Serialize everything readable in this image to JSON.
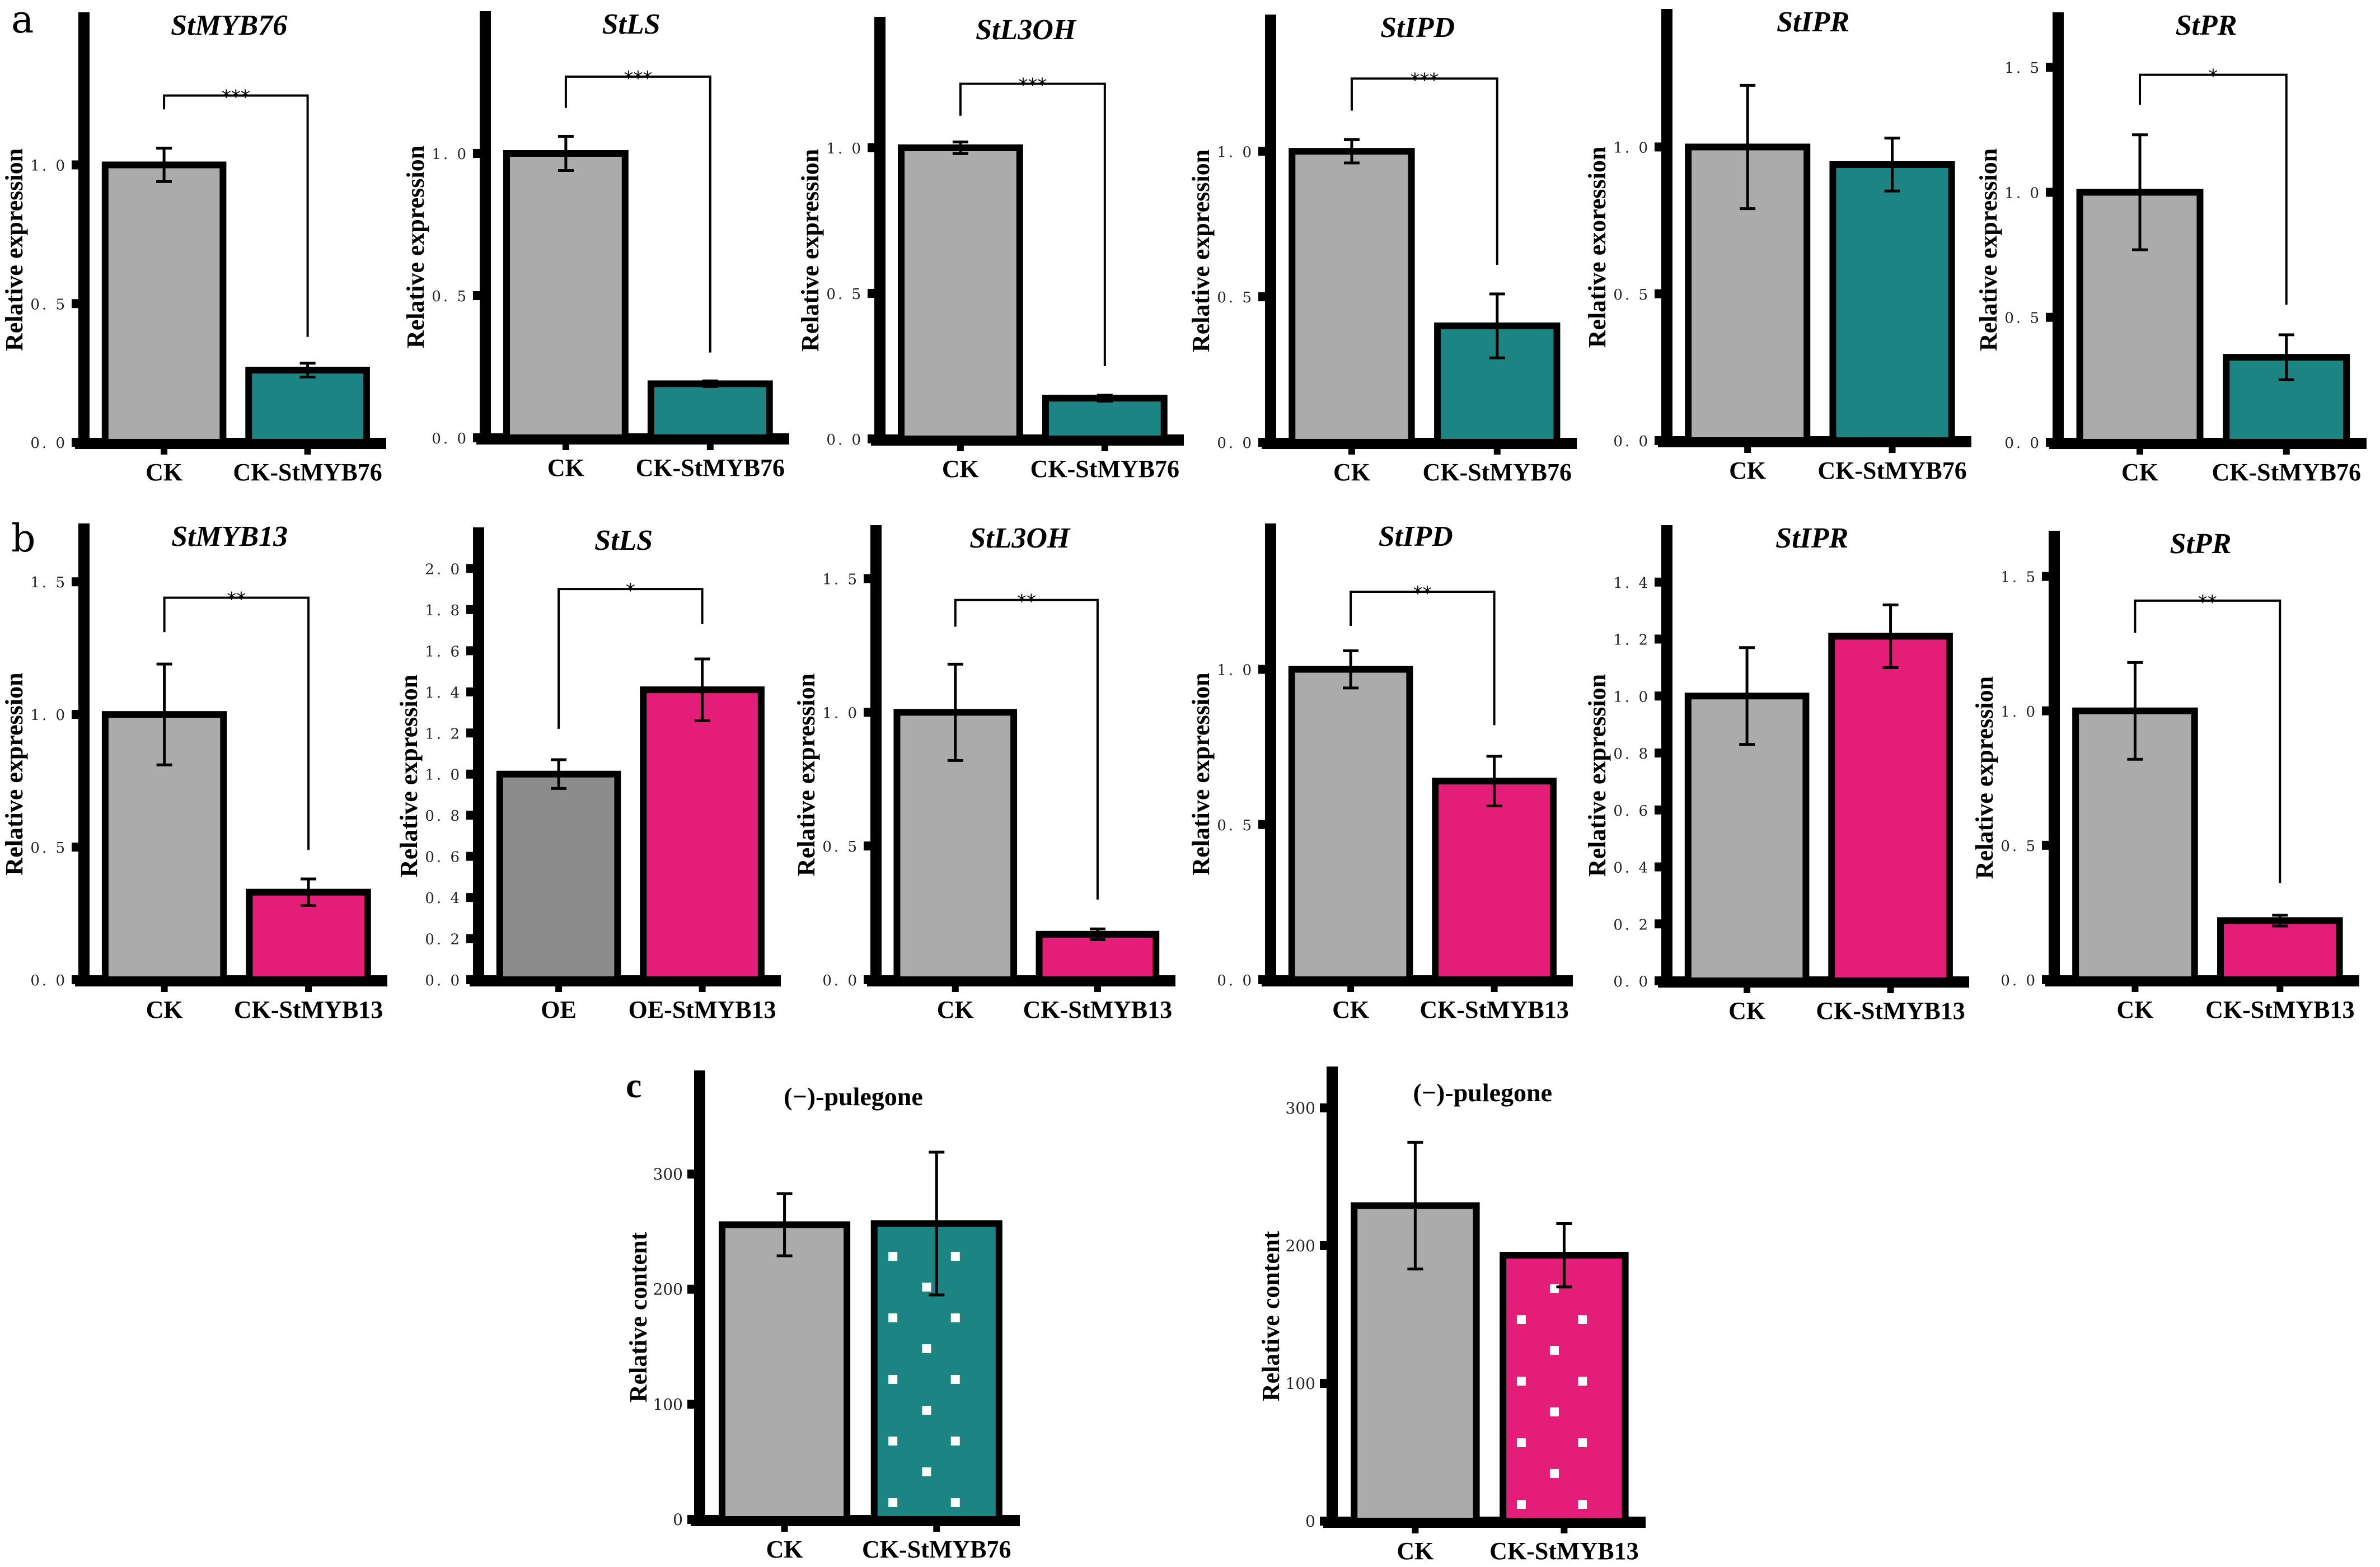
{
  "figure": {
    "panel_labels": [
      "a",
      "b",
      "c"
    ]
  },
  "colors": {
    "control_gray": "#ababab",
    "oe_gray": "#8c8c8c",
    "teal": "#1c8482",
    "magenta": "#e41e78",
    "axis": "#000000",
    "dot": "#ffffff"
  },
  "chart_data": [
    {
      "id": "a1",
      "row": "a",
      "type": "bar",
      "title": "StMYB76",
      "title_style": "italic",
      "xlabel": "",
      "ylabel": "Relative expression",
      "categories": [
        "CK",
        "CK-StMYB76"
      ],
      "values": [
        1.0,
        0.26
      ],
      "errors": [
        0.06,
        0.025
      ],
      "bar_colors": [
        "control_gray",
        "teal"
      ],
      "yticks": [
        0.0,
        0.5,
        1.0
      ],
      "ytick_labels": [
        "0. 0",
        "0. 5",
        "1. 0"
      ],
      "ylim": [
        0,
        1.55
      ],
      "significance": "***",
      "bracket_top": 1.25,
      "bracket_left_end": 1.2,
      "bracket_right_end": 0.38
    },
    {
      "id": "a2",
      "row": "a",
      "type": "bar",
      "title": "StLS",
      "title_style": "italic",
      "xlabel": "",
      "ylabel": "Relative expression",
      "categories": [
        "CK",
        "CK-StMYB76"
      ],
      "values": [
        1.0,
        0.19
      ],
      "errors": [
        0.06,
        0.01
      ],
      "bar_colors": [
        "control_gray",
        "teal"
      ],
      "yticks": [
        0.0,
        0.5,
        1.0
      ],
      "ytick_labels": [
        "0. 0",
        "0. 5",
        "1. 0"
      ],
      "ylim": [
        0,
        1.5
      ],
      "significance": "***",
      "bracket_top": 1.27,
      "bracket_left_end": 1.16,
      "bracket_right_end": 0.3
    },
    {
      "id": "a3",
      "row": "a",
      "type": "bar",
      "title": "StL3OH",
      "title_style": "italic",
      "xlabel": "",
      "ylabel": "Relative expression",
      "categories": [
        "CK",
        "CK-StMYB76"
      ],
      "values": [
        1.0,
        0.14
      ],
      "errors": [
        0.02,
        0.01
      ],
      "bar_colors": [
        "control_gray",
        "teal"
      ],
      "yticks": [
        0.0,
        0.5,
        1.0
      ],
      "ytick_labels": [
        "0. 0",
        "0. 5",
        "1. 0"
      ],
      "ylim": [
        0,
        1.45
      ],
      "significance": "***",
      "bracket_top": 1.22,
      "bracket_left_end": 1.11,
      "bracket_right_end": 0.25
    },
    {
      "id": "a4",
      "row": "a",
      "type": "bar",
      "title": "StIPD",
      "title_style": "italic",
      "xlabel": "",
      "ylabel": "Relative expression",
      "categories": [
        "CK",
        "CK-StMYB76"
      ],
      "values": [
        1.0,
        0.4
      ],
      "errors": [
        0.04,
        0.11
      ],
      "bar_colors": [
        "control_gray",
        "teal"
      ],
      "yticks": [
        0.0,
        0.5,
        1.0
      ],
      "ytick_labels": [
        "0. 0",
        "0. 5",
        "1. 0"
      ],
      "ylim": [
        0,
        1.47
      ],
      "significance": "***",
      "bracket_top": 1.25,
      "bracket_left_end": 1.14,
      "bracket_right_end": 0.61
    },
    {
      "id": "a5",
      "row": "a",
      "type": "bar",
      "title": "StIPR",
      "title_style": "italic",
      "xlabel": "",
      "ylabel": "Relative exoression",
      "categories": [
        "CK",
        "CK-StMYB76"
      ],
      "values": [
        1.0,
        0.94
      ],
      "errors": [
        0.21,
        0.09
      ],
      "bar_colors": [
        "control_gray",
        "teal"
      ],
      "yticks": [
        0.0,
        0.5,
        1.0
      ],
      "ytick_labels": [
        "0. 0",
        "0. 5",
        "1. 0"
      ],
      "ylim": [
        0,
        1.47
      ],
      "significance": null
    },
    {
      "id": "a6",
      "row": "a",
      "type": "bar",
      "title": "StPR",
      "title_style": "italic",
      "xlabel": "",
      "ylabel": "Relative expression",
      "categories": [
        "CK",
        "CK-StMYB76"
      ],
      "values": [
        1.0,
        0.34
      ],
      "errors": [
        0.23,
        0.09
      ],
      "bar_colors": [
        "control_gray",
        "teal"
      ],
      "yticks": [
        0.0,
        0.5,
        1.0,
        1.5
      ],
      "ytick_labels": [
        "0. 0",
        "0. 5",
        "1. 0",
        "1. 5"
      ],
      "ylim": [
        0,
        1.72
      ],
      "significance": "*",
      "bracket_top": 1.47,
      "bracket_left_end": 1.35,
      "bracket_right_end": 0.55
    },
    {
      "id": "b1",
      "row": "b",
      "type": "bar",
      "title": "StMYB13",
      "title_style": "italic",
      "xlabel": "",
      "ylabel": "Relative expression",
      "categories": [
        "CK",
        "CK-StMYB13"
      ],
      "values": [
        1.0,
        0.33
      ],
      "errors": [
        0.19,
        0.05
      ],
      "bar_colors": [
        "control_gray",
        "magenta"
      ],
      "yticks": [
        0.0,
        0.5,
        1.0,
        1.5
      ],
      "ytick_labels": [
        "0. 0",
        "0. 5",
        "1. 0",
        "1. 5"
      ],
      "ylim": [
        0,
        1.72
      ],
      "significance": "**",
      "bracket_top": 1.44,
      "bracket_left_end": 1.31,
      "bracket_right_end": 0.49
    },
    {
      "id": "b2",
      "row": "b",
      "type": "bar",
      "title": "StLS",
      "title_style": "italic",
      "xlabel": "",
      "ylabel": "Relative expression",
      "categories": [
        "OE",
        "OE-StMYB13"
      ],
      "values": [
        1.0,
        1.41
      ],
      "errors": [
        0.07,
        0.15
      ],
      "bar_colors": [
        "oe_gray",
        "magenta"
      ],
      "yticks": [
        0.0,
        0.2,
        0.4,
        0.6,
        0.8,
        1.0,
        1.2,
        1.4,
        1.6,
        1.8,
        2.0
      ],
      "ytick_labels": [
        "0. 0",
        "0. 2",
        "0. 4",
        "0. 6",
        "0. 8",
        "1. 0",
        "1. 2",
        "1. 4",
        "1. 6",
        "1. 8",
        "2. 0"
      ],
      "ylim": [
        0,
        2.2
      ],
      "significance": "*",
      "bracket_top": 1.9,
      "bracket_left_end": 1.22,
      "bracket_right_end": 1.73
    },
    {
      "id": "b3",
      "row": "b",
      "type": "bar",
      "title": "StL3OH",
      "title_style": "italic",
      "xlabel": "",
      "ylabel": "Relative expression",
      "categories": [
        "CK",
        "CK-StMYB13"
      ],
      "values": [
        1.0,
        0.17
      ],
      "errors": [
        0.18,
        0.02
      ],
      "bar_colors": [
        "control_gray",
        "magenta"
      ],
      "yticks": [
        0.0,
        0.5,
        1.0,
        1.5
      ],
      "ytick_labels": [
        "0. 0",
        "0. 5",
        "1. 0",
        "1. 5"
      ],
      "ylim": [
        0,
        1.7
      ],
      "significance": "**",
      "bracket_top": 1.42,
      "bracket_left_end": 1.32,
      "bracket_right_end": 0.3
    },
    {
      "id": "b4",
      "row": "b",
      "type": "bar",
      "title": "StIPD",
      "title_style": "italic",
      "xlabel": "",
      "ylabel": "Relative expression",
      "categories": [
        "CK",
        "CK-StMYB13"
      ],
      "values": [
        1.0,
        0.64
      ],
      "errors": [
        0.06,
        0.08
      ],
      "bar_colors": [
        "control_gray",
        "magenta"
      ],
      "yticks": [
        0.0,
        0.5,
        1.0
      ],
      "ytick_labels": [
        "0. 0",
        "0. 5",
        "1. 0"
      ],
      "ylim": [
        0,
        1.47
      ],
      "significance": "**",
      "bracket_top": 1.25,
      "bracket_left_end": 1.14,
      "bracket_right_end": 0.82
    },
    {
      "id": "b5",
      "row": "b",
      "type": "bar",
      "title": "StIPR",
      "title_style": "italic",
      "xlabel": "",
      "ylabel": "Relative expression",
      "categories": [
        "CK",
        "CK-StMYB13"
      ],
      "values": [
        1.0,
        1.21
      ],
      "errors": [
        0.17,
        0.11
      ],
      "bar_colors": [
        "control_gray",
        "magenta"
      ],
      "yticks": [
        0.0,
        0.2,
        0.4,
        0.6,
        0.8,
        1.0,
        1.2,
        1.4
      ],
      "ytick_labels": [
        "0. 0",
        "0. 2",
        "0. 4",
        "0. 6",
        "0. 8",
        "1. 0",
        "1. 2",
        "1. 4"
      ],
      "ylim": [
        0,
        1.6
      ],
      "significance": null
    },
    {
      "id": "b6",
      "row": "b",
      "type": "bar",
      "title": "StPR",
      "title_style": "italic",
      "xlabel": "",
      "ylabel": "Relative expression",
      "categories": [
        "CK",
        "CK-StMYB13"
      ],
      "values": [
        1.0,
        0.22
      ],
      "errors": [
        0.18,
        0.02
      ],
      "bar_colors": [
        "control_gray",
        "magenta"
      ],
      "yticks": [
        0.0,
        0.5,
        1.0,
        1.5
      ],
      "ytick_labels": [
        "0. 0",
        "0. 5",
        "1. 0",
        "1. 5"
      ],
      "ylim": [
        0,
        1.67
      ],
      "significance": "**",
      "bracket_top": 1.41,
      "bracket_left_end": 1.29,
      "bracket_right_end": 0.36
    },
    {
      "id": "c1",
      "row": "c",
      "type": "bar",
      "title": "(−)-pulegone",
      "title_style": "bold",
      "xlabel": "",
      "ylabel": "Relative content",
      "categories": [
        "CK",
        "CK-StMYB76"
      ],
      "values": [
        256,
        257
      ],
      "errors": [
        27,
        62
      ],
      "bar_colors": [
        "control_gray",
        "teal"
      ],
      "bar_patterns": [
        null,
        "dots"
      ],
      "yticks": [
        0,
        100,
        200,
        300
      ],
      "ytick_labels": [
        "0",
        "100",
        "200",
        "300"
      ],
      "ylim": [
        0,
        390
      ],
      "significance": null
    },
    {
      "id": "c2",
      "row": "c",
      "type": "bar",
      "title": "(−)-pulegone",
      "title_style": "bold",
      "xlabel": "",
      "ylabel": "Relative content",
      "categories": [
        "CK",
        "CK-StMYB13"
      ],
      "values": [
        229,
        193
      ],
      "errors": [
        46,
        23
      ],
      "bar_colors": [
        "control_gray",
        "magenta"
      ],
      "bar_patterns": [
        null,
        "dots"
      ],
      "yticks": [
        0,
        100,
        200,
        300
      ],
      "ytick_labels": [
        "0",
        "100",
        "200",
        "300"
      ],
      "ylim": [
        0,
        330
      ],
      "significance": null
    }
  ]
}
